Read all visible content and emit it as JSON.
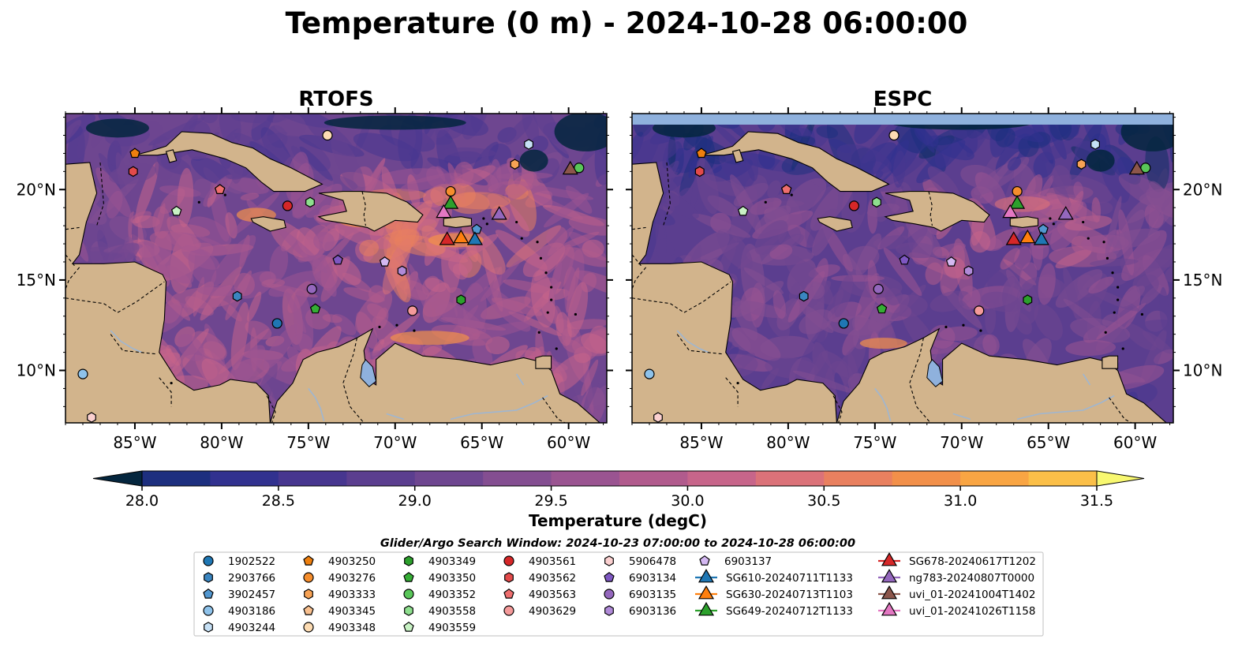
{
  "figure": {
    "title": "Temperature (0 m) - 2024-10-28 06:00:00",
    "lon_range": [
      -89.0,
      -57.8
    ],
    "lat_range": [
      7.1,
      24.2
    ]
  },
  "panels": [
    {
      "id": "rtofs",
      "title": "RTOFS",
      "lat_labels_side": "left",
      "palette_shift": 0.55
    },
    {
      "id": "espc",
      "title": "ESPC",
      "lat_labels_side": "right",
      "palette_shift": 0.0
    }
  ],
  "axes": {
    "lon_ticks": [
      {
        "value": -85,
        "label": "85°W"
      },
      {
        "value": -80,
        "label": "80°W"
      },
      {
        "value": -75,
        "label": "75°W"
      },
      {
        "value": -70,
        "label": "70°W"
      },
      {
        "value": -65,
        "label": "65°W"
      },
      {
        "value": -60,
        "label": "60°W"
      }
    ],
    "lat_ticks": [
      {
        "value": 10,
        "label": "10°N"
      },
      {
        "value": 15,
        "label": "15°N"
      },
      {
        "value": 20,
        "label": "20°N"
      }
    ]
  },
  "colorbar": {
    "label": "Temperature (degC)",
    "vmin": 28.0,
    "vmax": 31.5,
    "extend": "both",
    "ticks": [
      {
        "value": 28.0,
        "label": "28.0"
      },
      {
        "value": 28.5,
        "label": "28.5"
      },
      {
        "value": 29.0,
        "label": "29.0"
      },
      {
        "value": 29.5,
        "label": "29.5"
      },
      {
        "value": 30.0,
        "label": "30.0"
      },
      {
        "value": 30.5,
        "label": "30.5"
      },
      {
        "value": 31.0,
        "label": "31.0"
      },
      {
        "value": 31.5,
        "label": "31.5"
      }
    ],
    "colors": [
      "#04263e",
      "#0d2d62",
      "#1d2f7f",
      "#31318f",
      "#47368f",
      "#5b3e8f",
      "#6e4690",
      "#844e91",
      "#9a5491",
      "#b15b8d",
      "#c7658a",
      "#db7279",
      "#e9805f",
      "#f2904a",
      "#f9a543",
      "#fbbf48",
      "#f6dc5a",
      "#f4ef6a"
    ],
    "under_color": "#04263e",
    "over_color": "#f8f870"
  },
  "legend": {
    "search_window": "Glider/Argo Search Window: 2024-10-23 07:00:00 to 2024-10-28 06:00:00",
    "columns": [
      [
        {
          "label": "1902522",
          "shape": "circle",
          "color": "#1f77b4"
        },
        {
          "label": "2903766",
          "shape": "hexagon",
          "color": "#3a85c0"
        },
        {
          "label": "3902457",
          "shape": "pentagon",
          "color": "#5297d0"
        },
        {
          "label": "4903186",
          "shape": "circle",
          "color": "#8ec2ea"
        },
        {
          "label": "4903244",
          "shape": "hexagon",
          "color": "#c6e0f5"
        }
      ],
      [
        {
          "label": "4903250",
          "shape": "pentagon",
          "color": "#ee7f0e"
        },
        {
          "label": "4903276",
          "shape": "circle",
          "color": "#f58d2c"
        },
        {
          "label": "4903333",
          "shape": "hexagon",
          "color": "#f7a254"
        },
        {
          "label": "4903345",
          "shape": "pentagon",
          "color": "#f9c08f"
        },
        {
          "label": "4903348",
          "shape": "circle",
          "color": "#fddcb3"
        }
      ],
      [
        {
          "label": "4903349",
          "shape": "hexagon",
          "color": "#2ca02c"
        },
        {
          "label": "4903350",
          "shape": "pentagon",
          "color": "#35ad35"
        },
        {
          "label": "4903352",
          "shape": "circle",
          "color": "#59c659"
        },
        {
          "label": "4903558",
          "shape": "hexagon",
          "color": "#8edf8e"
        },
        {
          "label": "4903559",
          "shape": "pentagon",
          "color": "#c8f2c4"
        }
      ],
      [
        {
          "label": "4903561",
          "shape": "circle",
          "color": "#d62728"
        },
        {
          "label": "4903562",
          "shape": "hexagon",
          "color": "#e34a4a"
        },
        {
          "label": "4903563",
          "shape": "pentagon",
          "color": "#ee6e6e"
        },
        {
          "label": "4903629",
          "shape": "circle",
          "color": "#f59a9a"
        }
      ],
      [
        {
          "label": "5906478",
          "shape": "hexagon",
          "color": "#fbd0d0"
        },
        {
          "label": "6903134",
          "shape": "pentagon",
          "color": "#7e57c2"
        },
        {
          "label": "6903135",
          "shape": "circle",
          "color": "#9467bd"
        },
        {
          "label": "6903136",
          "shape": "hexagon",
          "color": "#b08ad8"
        }
      ],
      [
        {
          "label": "6903137",
          "shape": "pentagon",
          "color": "#d4b8f2"
        },
        {
          "label": "SG610-20240711T1133",
          "shape": "triangle",
          "color": "#1f77b4",
          "line": true
        },
        {
          "label": "SG630-20240713T1103",
          "shape": "triangle",
          "color": "#ff7f0e",
          "line": true
        },
        {
          "label": "SG649-20240712T1133",
          "shape": "triangle",
          "color": "#2ca02c",
          "line": true
        }
      ],
      [
        {
          "label": "SG678-20240617T1202",
          "shape": "triangle",
          "color": "#d62728",
          "line": true
        },
        {
          "label": "ng783-20240807T0000",
          "shape": "triangle",
          "color": "#9467bd",
          "line": true
        },
        {
          "label": "uvi_01-20241004T1402",
          "shape": "triangle",
          "color": "#8c564b",
          "line": true
        },
        {
          "label": "uvi_01-20241026T1158",
          "shape": "triangle",
          "color": "#e377c2",
          "line": true
        }
      ]
    ]
  },
  "platforms": [
    {
      "id": "1902522",
      "lon": -76.8,
      "lat": 12.6
    },
    {
      "id": "2903766",
      "lon": -79.1,
      "lat": 14.1
    },
    {
      "id": "3902457",
      "lon": -65.3,
      "lat": 17.8
    },
    {
      "id": "4903186",
      "lon": -88.0,
      "lat": 9.8
    },
    {
      "id": "4903244",
      "lon": -62.3,
      "lat": 22.5
    },
    {
      "id": "4903250",
      "lon": -85.0,
      "lat": 22.0
    },
    {
      "id": "4903276",
      "lon": -66.8,
      "lat": 19.9
    },
    {
      "id": "4903333",
      "lon": -63.1,
      "lat": 21.4
    },
    {
      "id": "4903345",
      "lon": -80.1,
      "lat": 20.0
    },
    {
      "id": "4903348",
      "lon": -73.9,
      "lat": 23.0
    },
    {
      "id": "4903349",
      "lon": -66.2,
      "lat": 13.9
    },
    {
      "id": "4903350",
      "lon": -74.6,
      "lat": 13.4
    },
    {
      "id": "4903352",
      "lon": -59.4,
      "lat": 21.2
    },
    {
      "id": "4903558",
      "lon": -74.9,
      "lat": 19.3
    },
    {
      "id": "4903559",
      "lon": -82.6,
      "lat": 18.8
    },
    {
      "id": "4903561",
      "lon": -76.2,
      "lat": 19.1
    },
    {
      "id": "4903562",
      "lon": -85.1,
      "lat": 21.0
    },
    {
      "id": "4903563",
      "lon": -80.1,
      "lat": 20.0
    },
    {
      "id": "4903629",
      "lon": -69.0,
      "lat": 13.3
    },
    {
      "id": "5906478",
      "lon": -87.5,
      "lat": 7.4
    },
    {
      "id": "6903134",
      "lon": -73.3,
      "lat": 16.1
    },
    {
      "id": "6903135",
      "lon": -74.8,
      "lat": 14.5
    },
    {
      "id": "6903136",
      "lon": -69.6,
      "lat": 15.5
    },
    {
      "id": "6903137",
      "lon": -70.6,
      "lat": 16.0
    },
    {
      "id": "SG610-20240711T1133",
      "lon": -65.4,
      "lat": 17.3
    },
    {
      "id": "SG630-20240713T1103",
      "lon": -66.2,
      "lat": 17.4
    },
    {
      "id": "SG649-20240712T1133",
      "lon": -66.8,
      "lat": 19.3
    },
    {
      "id": "SG678-20240617T1202",
      "lon": -67.0,
      "lat": 17.3
    },
    {
      "id": "ng783-20240807T0000",
      "lon": -64.0,
      "lat": 18.7
    },
    {
      "id": "uvi_01-20241004T1402",
      "lon": -59.9,
      "lat": 21.2
    },
    {
      "id": "uvi_01-20241026T1158",
      "lon": -67.2,
      "lat": 18.8
    }
  ]
}
